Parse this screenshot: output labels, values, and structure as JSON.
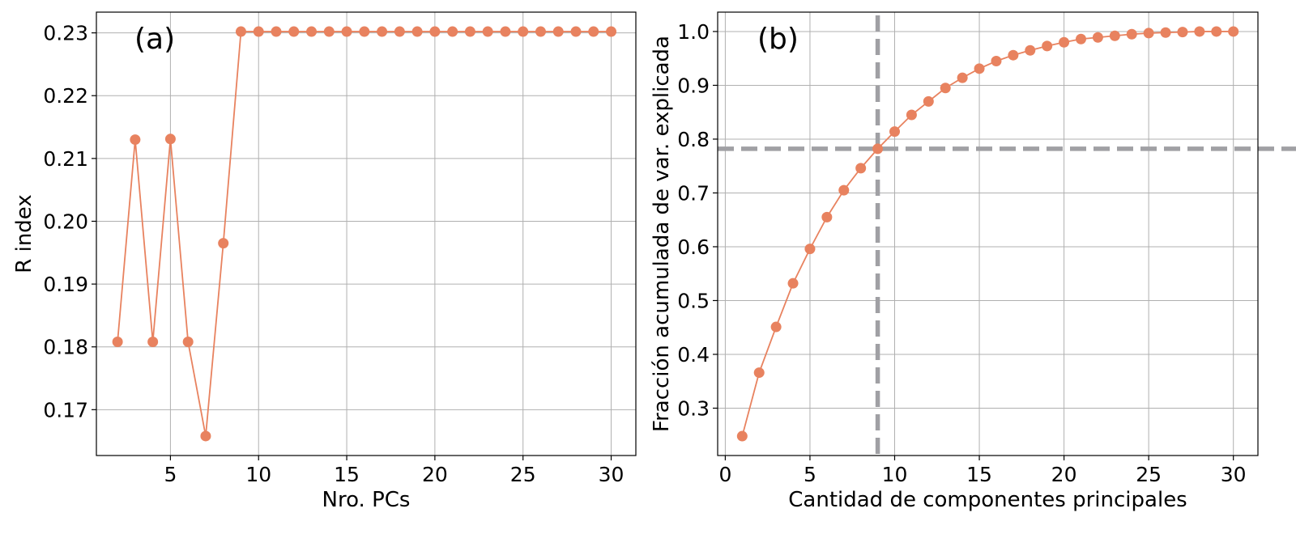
{
  "colors": {
    "series": "#e8825f",
    "reference_line": "#a0a0a4",
    "grid": "#b0b0b0"
  },
  "chart_data": [
    {
      "type": "line",
      "panel_label": "(a)",
      "xlabel": "Nro. PCs",
      "ylabel": "R index",
      "xlim": [
        0.8,
        31.4
      ],
      "ylim": [
        0.1627,
        0.2333
      ],
      "xticks": [
        5,
        10,
        15,
        20,
        25,
        30
      ],
      "xtick_labels": [
        "5",
        "10",
        "15",
        "20",
        "25",
        "30"
      ],
      "yticks": [
        0.17,
        0.18,
        0.19,
        0.2,
        0.21,
        0.22,
        0.23
      ],
      "ytick_labels": [
        "0.17",
        "0.18",
        "0.19",
        "0.20",
        "0.21",
        "0.22",
        "0.23"
      ],
      "grid": true,
      "series": [
        {
          "marker": "circle",
          "x": [
            2,
            3,
            4,
            5,
            6,
            7,
            8,
            9,
            10,
            11,
            12,
            13,
            14,
            15,
            16,
            17,
            18,
            19,
            20,
            21,
            22,
            23,
            24,
            25,
            26,
            27,
            28,
            29,
            30
          ],
          "values": [
            0.1808,
            0.213,
            0.1808,
            0.2131,
            0.1808,
            0.1658,
            0.1965,
            0.2302,
            0.2302,
            0.2302,
            0.2302,
            0.2302,
            0.2302,
            0.2302,
            0.2302,
            0.2302,
            0.2302,
            0.2302,
            0.2302,
            0.2302,
            0.2302,
            0.2302,
            0.2302,
            0.2302,
            0.2302,
            0.2302,
            0.2302,
            0.2302,
            0.2302
          ]
        }
      ]
    },
    {
      "type": "line",
      "panel_label": "(b)",
      "xlabel": "Cantidad de componentes principales",
      "ylabel": "Fracción acumulada de var. explicada",
      "xlim": [
        -0.45,
        31.45
      ],
      "ylim": [
        0.212,
        1.036
      ],
      "xticks": [
        0,
        5,
        10,
        15,
        20,
        25,
        30
      ],
      "xtick_labels": [
        "0",
        "5",
        "10",
        "15",
        "20",
        "25",
        "30"
      ],
      "yticks": [
        0.3,
        0.4,
        0.5,
        0.6,
        0.7,
        0.8,
        0.9,
        1.0
      ],
      "ytick_labels": [
        "0.3",
        "0.4",
        "0.5",
        "0.6",
        "0.7",
        "0.8",
        "0.9",
        "1.0"
      ],
      "grid": true,
      "reference_lines": {
        "x": 9,
        "y": 0.782,
        "style": "dashed"
      },
      "series": [
        {
          "marker": "circle",
          "x": [
            1,
            2,
            3,
            4,
            5,
            6,
            7,
            8,
            9,
            10,
            11,
            12,
            13,
            14,
            15,
            16,
            17,
            18,
            19,
            20,
            21,
            22,
            23,
            24,
            25,
            26,
            27,
            28,
            29,
            30
          ],
          "values": [
            0.248,
            0.366,
            0.451,
            0.532,
            0.596,
            0.655,
            0.705,
            0.746,
            0.782,
            0.814,
            0.845,
            0.87,
            0.895,
            0.914,
            0.931,
            0.945,
            0.956,
            0.965,
            0.973,
            0.98,
            0.986,
            0.989,
            0.992,
            0.995,
            0.997,
            0.998,
            0.999,
            1.0,
            1.0,
            1.0
          ]
        }
      ]
    }
  ]
}
